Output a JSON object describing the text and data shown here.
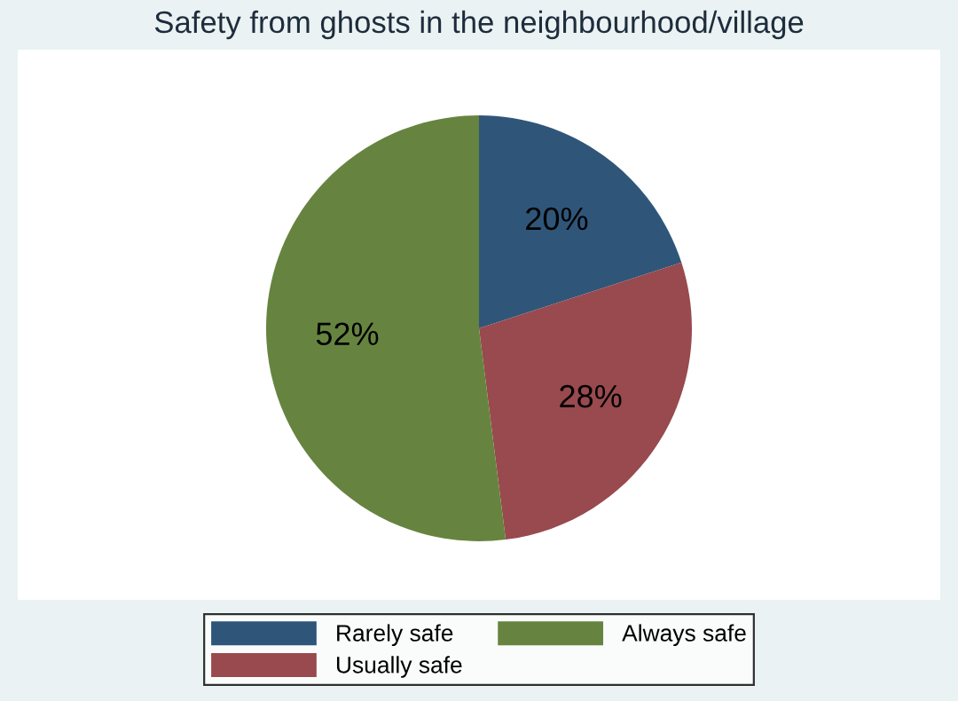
{
  "chart_data": {
    "type": "pie",
    "title": "Safety from ghosts in the neighbourhood/village",
    "categories": [
      "Rarely safe",
      "Usually safe",
      "Always safe"
    ],
    "values": [
      20,
      28,
      52
    ],
    "colors": [
      "#2f5679",
      "#984a4e",
      "#66843f"
    ],
    "value_labels": [
      "20%",
      "28%",
      "52%"
    ],
    "legend": "bottom"
  }
}
